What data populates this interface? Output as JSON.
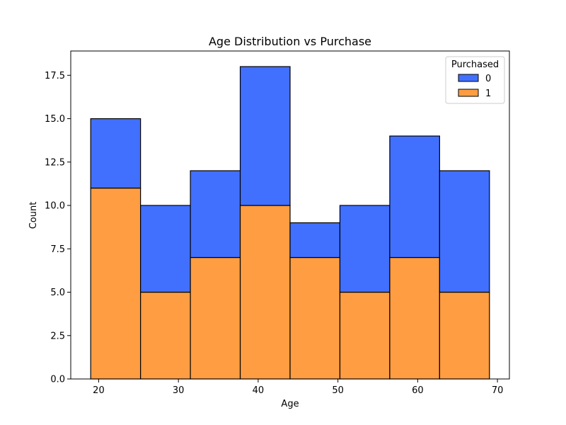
{
  "chart_data": {
    "type": "bar",
    "stacked": true,
    "title": "Age Distribution vs Purchase",
    "xlabel": "Age",
    "ylabel": "Count",
    "bin_edges": [
      19,
      25.25,
      31.5,
      37.75,
      44,
      50.25,
      56.5,
      62.75,
      69
    ],
    "xlim": [
      16.5,
      71.5
    ],
    "ylim": [
      0,
      18.9
    ],
    "xticks": [
      20,
      30,
      40,
      50,
      60,
      70
    ],
    "xtick_labels": [
      "20",
      "30",
      "40",
      "50",
      "60",
      "70"
    ],
    "yticks": [
      0,
      2.5,
      5,
      7.5,
      10,
      12.5,
      15,
      17.5
    ],
    "ytick_labels": [
      "0.0",
      "2.5",
      "5.0",
      "7.5",
      "10.0",
      "12.5",
      "15.0",
      "17.5"
    ],
    "series": [
      {
        "name": "1",
        "color": "#fe9d42",
        "values": [
          11,
          5,
          7,
          10,
          7,
          5,
          7,
          5
        ]
      },
      {
        "name": "0",
        "color": "#4270fe",
        "values": [
          4,
          5,
          5,
          8,
          2,
          5,
          7,
          7
        ]
      }
    ],
    "totals": [
      15,
      10,
      12,
      18,
      9,
      10,
      14,
      12
    ],
    "legend": {
      "title": "Purchased",
      "placement": "top-right",
      "entries": [
        {
          "label": "0",
          "color": "#4270fe"
        },
        {
          "label": "1",
          "color": "#fe9d42"
        }
      ]
    },
    "grid": false
  }
}
